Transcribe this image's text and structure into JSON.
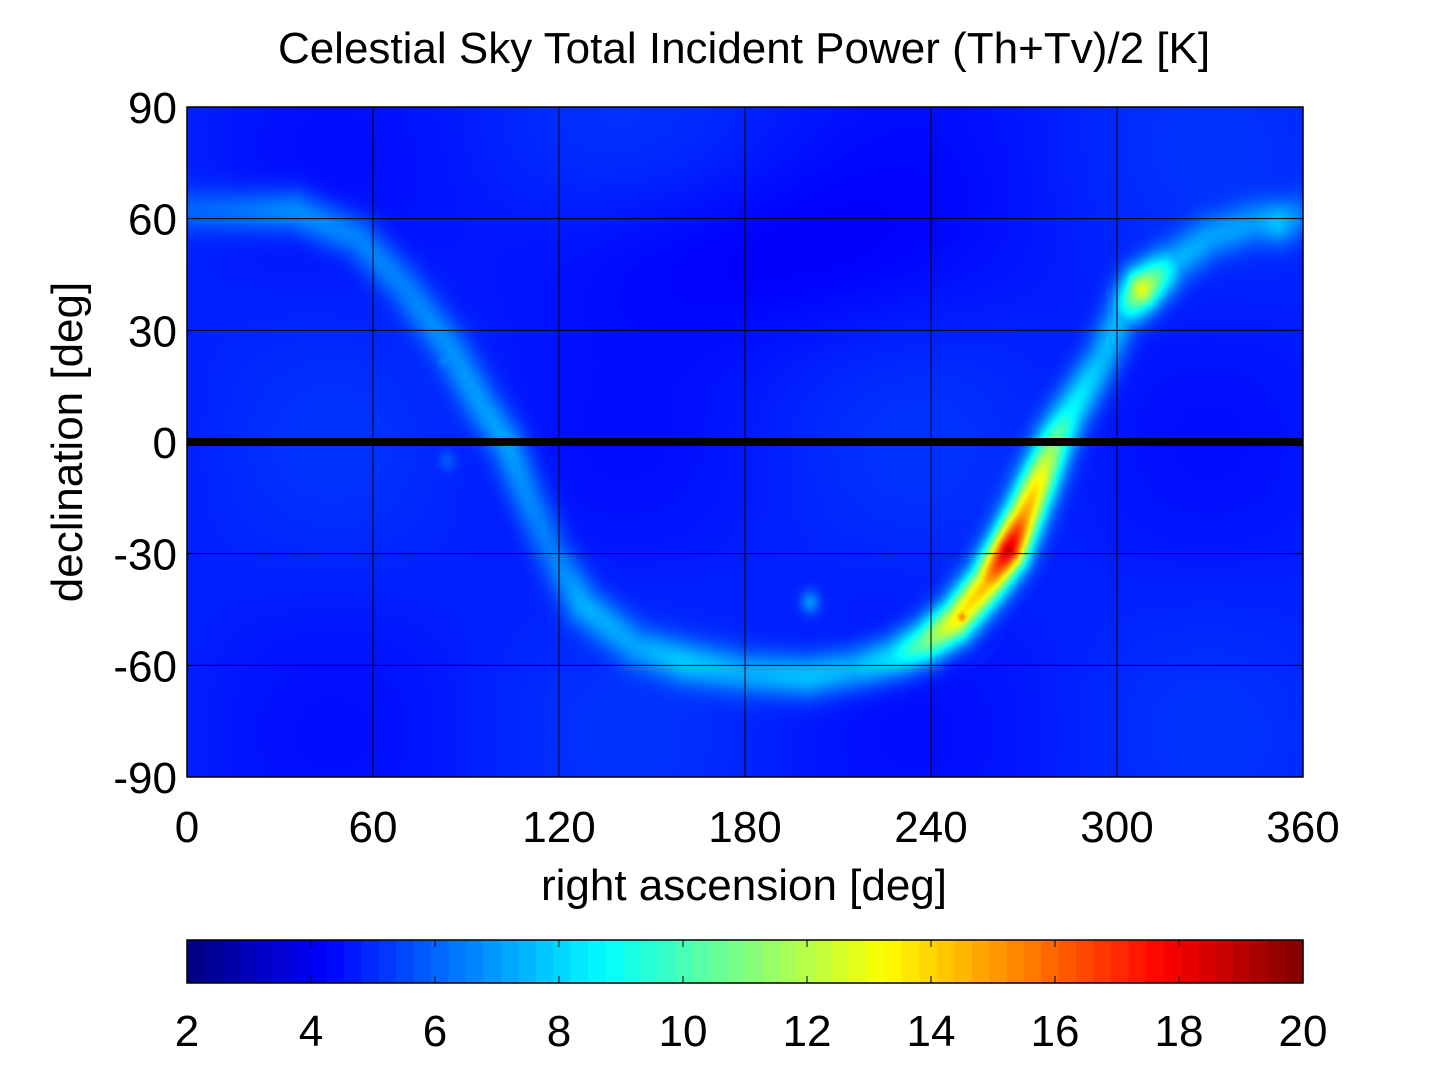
{
  "chart_data": {
    "type": "heatmap",
    "title": "Celestial Sky Total Incident Power (Th+Tv)/2 [K]",
    "xlabel": "right ascension [deg]",
    "ylabel": "declination [deg]",
    "xlim": [
      0,
      360
    ],
    "ylim": [
      -90,
      90
    ],
    "x_ticks": [
      0,
      60,
      120,
      180,
      240,
      300,
      360
    ],
    "y_ticks": [
      -90,
      -60,
      -30,
      0,
      30,
      60,
      90
    ],
    "grid": true,
    "colormap": "jet",
    "colorbar": {
      "placement": "bottom",
      "range": [
        2,
        20
      ],
      "ticks": [
        2,
        4,
        6,
        8,
        10,
        12,
        14,
        16,
        18,
        20
      ]
    },
    "background_level": 4.8,
    "equator_line": {
      "declination": 0,
      "color": "#000000"
    },
    "galactic_plane": [
      {
        "ra": 0,
        "dec": 62,
        "value": 6.0
      },
      {
        "ra": 20,
        "dec": 62,
        "value": 6.5
      },
      {
        "ra": 35,
        "dec": 62,
        "value": 7.0
      },
      {
        "ra": 55,
        "dec": 55,
        "value": 6.8
      },
      {
        "ra": 70,
        "dec": 42,
        "value": 6.6
      },
      {
        "ra": 85,
        "dec": 25,
        "value": 6.8
      },
      {
        "ra": 95,
        "dec": 10,
        "value": 7.0
      },
      {
        "ra": 103,
        "dec": 0,
        "value": 7.2
      },
      {
        "ra": 110,
        "dec": -15,
        "value": 6.8
      },
      {
        "ra": 118,
        "dec": -30,
        "value": 6.5
      },
      {
        "ra": 128,
        "dec": -44,
        "value": 7.3
      },
      {
        "ra": 145,
        "dec": -55,
        "value": 6.9
      },
      {
        "ra": 160,
        "dec": -59,
        "value": 7.6
      },
      {
        "ra": 180,
        "dec": -62,
        "value": 7.2
      },
      {
        "ra": 200,
        "dec": -63,
        "value": 7.8
      },
      {
        "ra": 215,
        "dec": -61,
        "value": 7.6
      },
      {
        "ra": 228,
        "dec": -58,
        "value": 8.5
      },
      {
        "ra": 238,
        "dec": -54,
        "value": 10.8
      },
      {
        "ra": 248,
        "dec": -48,
        "value": 13.5
      },
      {
        "ra": 258,
        "dec": -38,
        "value": 14.5
      },
      {
        "ra": 265,
        "dec": -29,
        "value": 18.5
      },
      {
        "ra": 270,
        "dec": -20,
        "value": 15.0
      },
      {
        "ra": 275,
        "dec": -10,
        "value": 13.2
      },
      {
        "ra": 280,
        "dec": 0,
        "value": 10.8
      },
      {
        "ra": 285,
        "dec": 8,
        "value": 8.8
      },
      {
        "ra": 290,
        "dec": 15,
        "value": 8.2
      },
      {
        "ra": 295,
        "dec": 22,
        "value": 7.6
      },
      {
        "ra": 302,
        "dec": 35,
        "value": 7.6
      },
      {
        "ra": 308,
        "dec": 41,
        "value": 12.8
      },
      {
        "ra": 318,
        "dec": 48,
        "value": 7.4
      },
      {
        "ra": 330,
        "dec": 55,
        "value": 6.9
      },
      {
        "ra": 345,
        "dec": 59,
        "value": 6.8
      },
      {
        "ra": 352,
        "dec": 59,
        "value": 7.5
      },
      {
        "ra": 360,
        "dec": 61,
        "value": 6.0
      }
    ],
    "point_sources": [
      {
        "ra": 83,
        "dec": 22,
        "value": 6.6
      },
      {
        "ra": 84,
        "dec": -5,
        "value": 5.8
      },
      {
        "ra": 130,
        "dec": -45,
        "value": 7.5
      },
      {
        "ra": 201,
        "dec": -43,
        "value": 6.8
      },
      {
        "ra": 308,
        "dec": 41,
        "value": 13.0
      },
      {
        "ra": 350,
        "dec": 59,
        "value": 7.8
      },
      {
        "ra": 265,
        "dec": -29,
        "value": 19.5
      },
      {
        "ra": 250,
        "dec": -47,
        "value": 15.5
      }
    ]
  }
}
